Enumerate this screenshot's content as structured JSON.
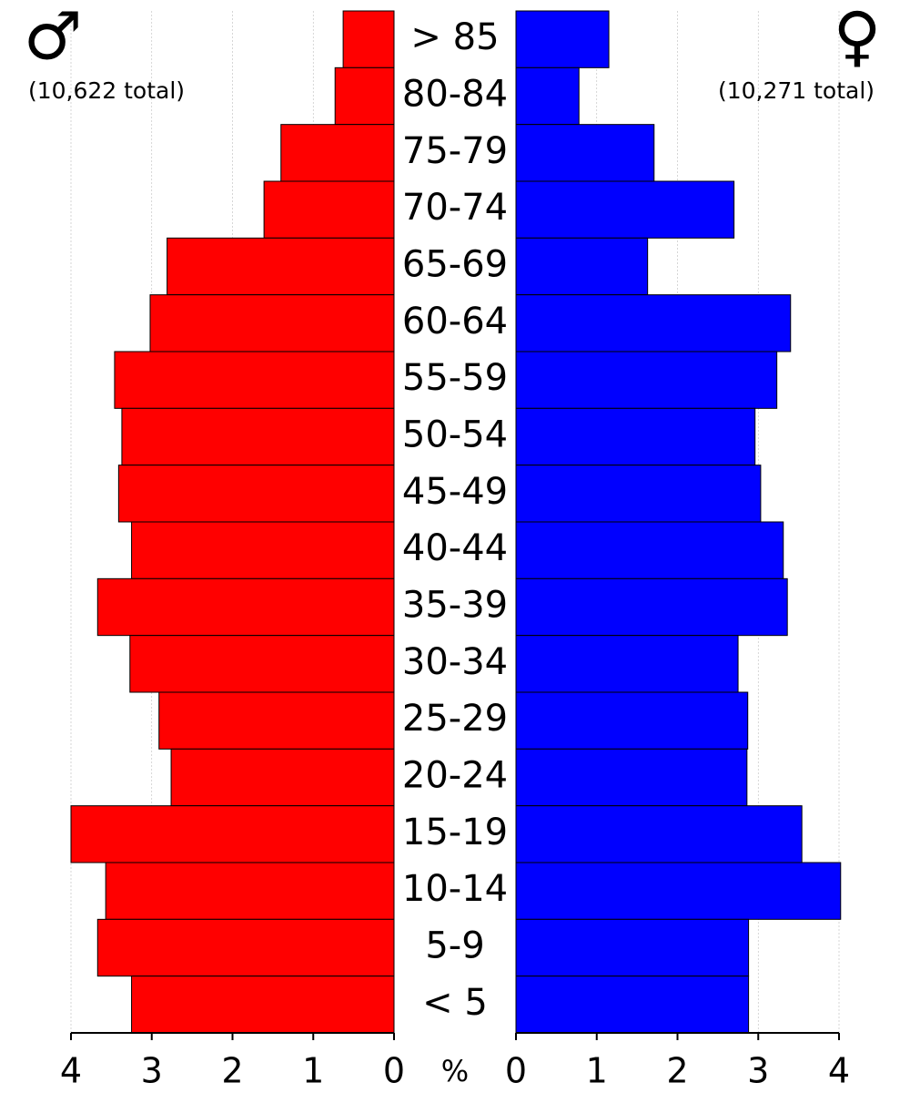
{
  "chart_data": {
    "type": "pyramid",
    "categories": [
      "> 85",
      "80-84",
      "75-79",
      "70-74",
      "65-69",
      "60-64",
      "55-59",
      "50-54",
      "45-49",
      "40-44",
      "35-39",
      "30-34",
      "25-29",
      "20-24",
      "15-19",
      "10-14",
      "5-9",
      "< 5"
    ],
    "series": [
      {
        "name": "♂",
        "total": "(10,622 total)",
        "color": "#ff0000",
        "values": [
          0.63,
          0.73,
          1.4,
          1.61,
          2.81,
          3.02,
          3.46,
          3.37,
          3.41,
          3.25,
          3.67,
          3.27,
          2.91,
          2.76,
          4.0,
          3.57,
          3.67,
          3.25
        ]
      },
      {
        "name": "♀",
        "total": "(10,271 total)",
        "color": "#0000ff",
        "values": [
          1.15,
          0.78,
          1.71,
          2.7,
          1.63,
          3.4,
          3.23,
          2.96,
          3.03,
          3.31,
          3.36,
          2.75,
          2.87,
          2.86,
          3.54,
          4.02,
          2.88,
          2.88
        ]
      }
    ],
    "xlabel": "%",
    "xlim": [
      0,
      4
    ],
    "xticks": [
      0,
      1,
      2,
      3,
      4
    ],
    "grid": true
  }
}
